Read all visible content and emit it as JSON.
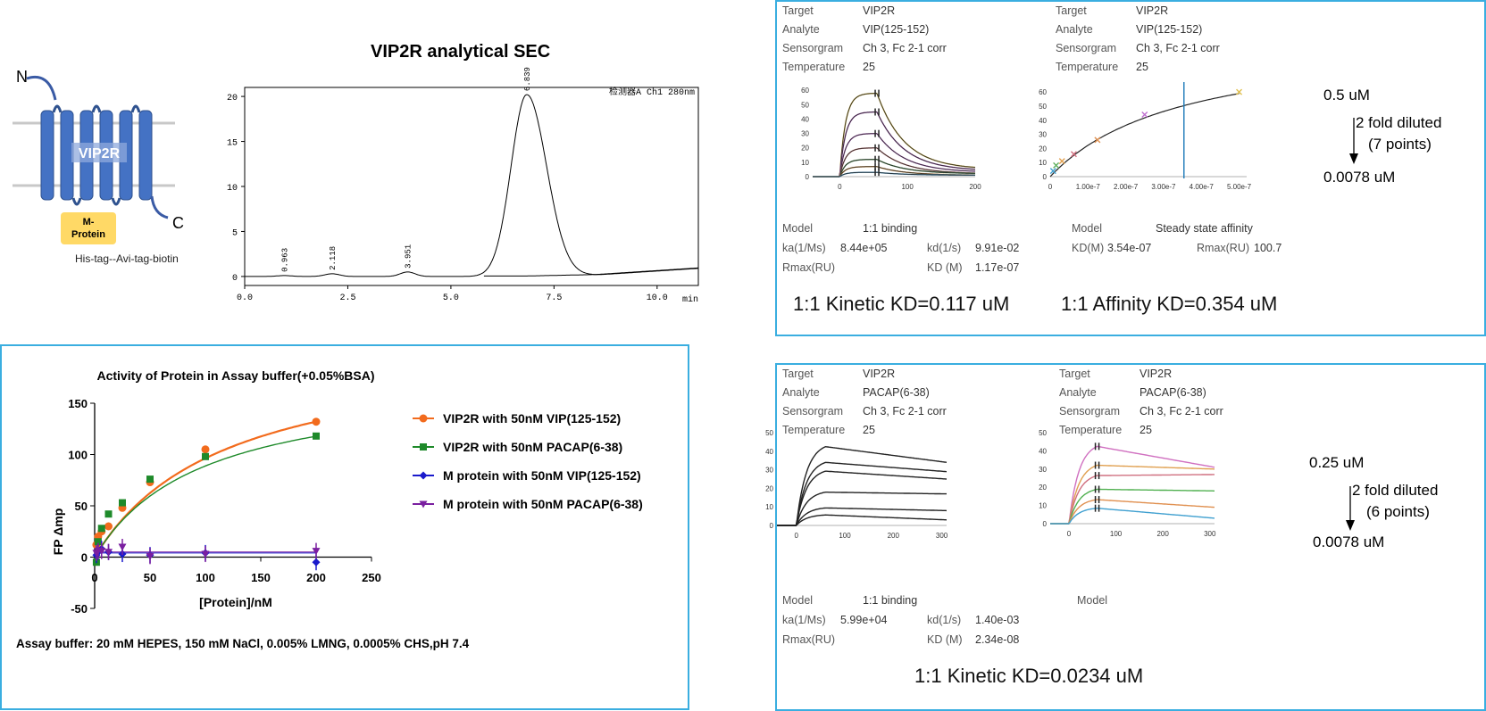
{
  "receptor": {
    "n_label": "N",
    "c_label": "C",
    "name": "VIP2R",
    "mprotein_line1": "M-",
    "mprotein_line2": "Protein",
    "tag": "His-tag--Avi-tag-biotin"
  },
  "sec": {
    "title": "VIP2R analytical SEC",
    "detector": "检测器A Ch1 280nm",
    "x_unit": "min",
    "x_ticks": [
      "0.0",
      "2.5",
      "5.0",
      "7.5",
      "10.0"
    ],
    "y_ticks": [
      "0",
      "5",
      "10",
      "15",
      "20"
    ],
    "peak_labels": [
      "0.963",
      "2.118",
      "3.951",
      "6.839"
    ]
  },
  "fp": {
    "title": "Activity of Protein in Assay buffer(+0.05%BSA)",
    "ylabel": "FP Δmp",
    "xlabel": "[Protein]/nM",
    "x_ticks": [
      "0",
      "50",
      "100",
      "150",
      "200",
      "250"
    ],
    "y_ticks": [
      "150",
      "100",
      "50",
      "0",
      "-50"
    ],
    "footnote": "Assay buffer: 20 mM HEPES, 150 mM NaCl,  0.005% LMNG, 0.0005% CHS,pH 7.4",
    "legend": [
      "VIP2R with 50nM VIP(125-152)",
      "VIP2R with 50nM PACAP(6-38)",
      "M protein with 50nM VIP(125-152)",
      "M protein with 50nM PACAP(6-38)"
    ]
  },
  "spr_vip": {
    "left": {
      "labels": [
        "Target",
        "Analyte",
        "Sensorgram",
        "Temperature"
      ],
      "values": [
        "VIP2R",
        "VIP(125-152)",
        "Ch 3, Fc 2-1 corr",
        "25"
      ],
      "model_label": "Model",
      "model_value": "1:1 binding",
      "ka_label": "ka(1/Ms)",
      "ka_value": "8.44e+05",
      "kd_label": "kd(1/s)",
      "kd_value": "9.91e-02",
      "rmax_label": "Rmax(RU)",
      "KD_label": "KD (M)",
      "KD_value": "1.17e-07",
      "summary": "1:1 Kinetic KD=0.117 uM",
      "y_ticks": [
        "60",
        "50",
        "40",
        "30",
        "20",
        "10",
        "0"
      ],
      "x_ticks": [
        "0",
        "100",
        "200"
      ]
    },
    "right": {
      "labels": [
        "Target",
        "Analyte",
        "Sensorgram",
        "Temperature"
      ],
      "values": [
        "VIP2R",
        "VIP(125-152)",
        "Ch 3, Fc 2-1 corr",
        "25"
      ],
      "model_label": "Model",
      "model_value": "Steady state affinity",
      "KD_label": "KD(M)",
      "KD_value": "3.54e-07",
      "rmax_label": "Rmax(RU)",
      "rmax_value": "100.7",
      "summary": "1:1 Affinity KD=0.354 uM",
      "y_ticks": [
        "60",
        "50",
        "40",
        "30",
        "20",
        "10",
        "0"
      ],
      "x_ticks": [
        "0",
        "1.00e-7",
        "2.00e-7",
        "3.00e-7",
        "4.00e-7",
        "5.00e-7"
      ],
      "conc_top": "0.5 uM",
      "dilution": "2 fold diluted",
      "points": "(7 points)",
      "conc_bottom": "0.0078 uM"
    }
  },
  "spr_pacap": {
    "left": {
      "labels": [
        "Target",
        "Analyte",
        "Sensorgram",
        "Temperature"
      ],
      "values": [
        "VIP2R",
        "PACAP(6-38)",
        "Ch 3, Fc 2-1 corr",
        "25"
      ],
      "model_label": "Model",
      "model_value": "1:1 binding",
      "ka_label": "ka(1/Ms)",
      "ka_value": "5.99e+04",
      "kd_label": "kd(1/s)",
      "kd_value": "1.40e-03",
      "rmax_label": "Rmax(RU)",
      "KD_label": "KD (M)",
      "KD_value": "2.34e-08",
      "summary": "1:1 Kinetic KD=0.0234 uM",
      "y_ticks": [
        "50",
        "40",
        "30",
        "20",
        "10",
        "0"
      ],
      "x_ticks": [
        "0",
        "100",
        "200",
        "300"
      ]
    },
    "right": {
      "labels": [
        "Target",
        "Analyte",
        "Sensorgram",
        "Temperature"
      ],
      "values": [
        "VIP2R",
        "PACAP(6-38)",
        "Ch 3, Fc 2-1 corr",
        "25"
      ],
      "model_label": "Model",
      "y_ticks": [
        "50",
        "40",
        "30",
        "20",
        "10",
        "0"
      ],
      "x_ticks": [
        "0",
        "100",
        "200",
        "300"
      ],
      "conc_top": "0.25 uM",
      "dilution": "2 fold diluted",
      "points": "(6 points)",
      "conc_bottom": "0.0078 uM"
    }
  },
  "chart_data": [
    {
      "type": "line",
      "title": "VIP2R analytical SEC",
      "xlabel": "min",
      "xlim": [
        0,
        11
      ],
      "ylim": [
        -1,
        21
      ],
      "peaks": [
        {
          "x": 0.963,
          "y": 0.1
        },
        {
          "x": 2.118,
          "y": 0.3
        },
        {
          "x": 3.951,
          "y": 0.5
        },
        {
          "x": 6.839,
          "y": 20.2
        }
      ]
    },
    {
      "type": "scatter",
      "title": "Activity of Protein in Assay buffer(+0.05%BSA)",
      "xlabel": "[Protein]/nM",
      "ylabel": "FP Δmp",
      "xlim": [
        0,
        250
      ],
      "ylim": [
        -50,
        150
      ],
      "series": [
        {
          "name": "VIP2R with 50nM VIP(125-152)",
          "color": "#f26b1d",
          "x": [
            1.56,
            3.13,
            6.25,
            12.5,
            25,
            50,
            100,
            200
          ],
          "y": [
            12,
            20,
            25,
            30,
            48,
            73,
            105,
            132
          ]
        },
        {
          "name": "VIP2R with 50nM PACAP(6-38)",
          "color": "#1e8a2a",
          "x": [
            1.56,
            3.13,
            6.25,
            12.5,
            25,
            50,
            100,
            200
          ],
          "y": [
            -5,
            15,
            28,
            42,
            53,
            76,
            98,
            118
          ]
        },
        {
          "name": "M protein with 50nM VIP(125-152)",
          "color": "#1a1acc",
          "x": [
            1.56,
            3.13,
            6.25,
            12.5,
            25,
            50,
            100,
            200
          ],
          "y": [
            2,
            5,
            8,
            5,
            3,
            2,
            4,
            -5
          ]
        },
        {
          "name": "M protein with 50nM PACAP(6-38)",
          "color": "#7a1fa0",
          "x": [
            1.56,
            3.13,
            6.25,
            12.5,
            25,
            50,
            100,
            200
          ],
          "y": [
            4,
            6,
            6,
            5,
            10,
            1,
            3,
            6
          ]
        }
      ]
    },
    {
      "type": "line",
      "title": "",
      "xlim": [
        -40,
        200
      ],
      "ylim": [
        0,
        62
      ],
      "series": [
        {
          "plateau": 58,
          "end": 5,
          "color": "#d8b840"
        },
        {
          "plateau": 45,
          "end": 4,
          "color": "#b060c0"
        },
        {
          "plateau": 30,
          "end": 3,
          "color": "#c070d0"
        },
        {
          "plateau": 20,
          "end": 2,
          "color": "#d08080"
        },
        {
          "plateau": 12,
          "end": 2,
          "color": "#60a060"
        },
        {
          "plateau": 7,
          "end": 1,
          "color": "#e0a050"
        },
        {
          "plateau": 3,
          "end": 1,
          "color": "#50a0d0"
        }
      ]
    },
    {
      "type": "scatter",
      "title": "",
      "xlim": [
        0,
        5.2e-07
      ],
      "ylim": [
        0,
        62
      ],
      "x": [
        7.8e-09,
        1.56e-08,
        3.13e-08,
        6.25e-08,
        1.25e-07,
        2.5e-07,
        5e-07
      ],
      "y": [
        4,
        8,
        11,
        16,
        26,
        44,
        60
      ],
      "KD_line": 3.54e-07
    },
    {
      "type": "line",
      "title": "",
      "xlim": [
        -40,
        310
      ],
      "ylim": [
        0,
        50
      ],
      "series": [
        {
          "plateau": 45,
          "end": 34,
          "color": "#222"
        },
        {
          "plateau": 36,
          "end": 29,
          "color": "#222"
        },
        {
          "plateau": 31,
          "end": 25,
          "color": "#222"
        },
        {
          "plateau": 19,
          "end": 17,
          "color": "#222"
        },
        {
          "plateau": 10,
          "end": 8,
          "color": "#222"
        },
        {
          "plateau": 6,
          "end": 3,
          "color": "#222"
        }
      ]
    },
    {
      "type": "line",
      "title": "",
      "xlim": [
        -40,
        310
      ],
      "ylim": [
        0,
        50
      ],
      "series": [
        {
          "plateau": 45,
          "end": 31,
          "color": "#d070c0"
        },
        {
          "plateau": 34,
          "end": 30,
          "color": "#e0a050"
        },
        {
          "plateau": 28,
          "end": 27,
          "color": "#d07080"
        },
        {
          "plateau": 20,
          "end": 18,
          "color": "#50b050"
        },
        {
          "plateau": 14,
          "end": 9,
          "color": "#e09050"
        },
        {
          "plateau": 9,
          "end": 3,
          "color": "#40a0d0"
        }
      ]
    }
  ]
}
